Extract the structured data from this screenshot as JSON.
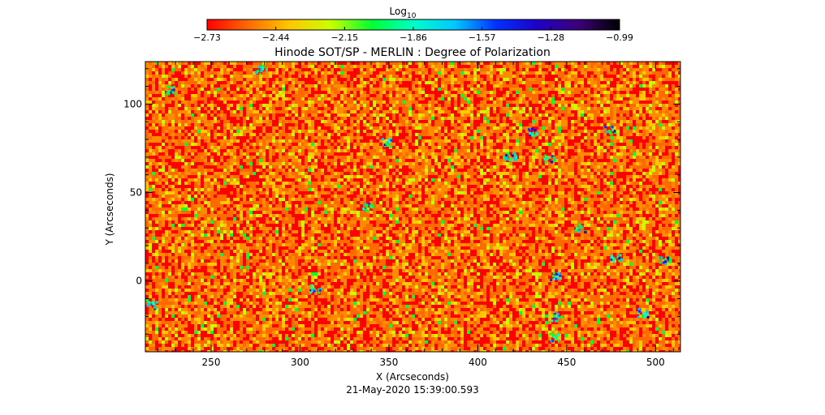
{
  "chart_data": {
    "type": "heatmap",
    "title": "Hinode SOT/SP - MERLIN : Degree of Polarization",
    "xlabel": "X (Arcseconds)",
    "ylabel": "Y (Arcseconds)",
    "timestamp": "21-May-2020 15:39:00.593",
    "colorbar": {
      "label": "Log",
      "label_subscript": "10",
      "range": [
        -2.73,
        -0.99
      ],
      "tick_labels": [
        "-2.73",
        "-2.44",
        "-2.15",
        "-1.86",
        "-1.57",
        "-1.28",
        "-0.99"
      ],
      "colormap": [
        "#ff0000",
        "#ff6a00",
        "#ffc800",
        "#c8ff00",
        "#00ff32",
        "#00ffc8",
        "#00c8ff",
        "#0032ff",
        "#1e00c8",
        "#3c0078",
        "#000000"
      ]
    },
    "xlim": [
      213,
      514
    ],
    "ylim": [
      -40,
      124
    ],
    "x_tick_labels": [
      "250",
      "300",
      "350",
      "400",
      "450",
      "500"
    ],
    "y_tick_labels": [
      "0",
      "50",
      "100"
    ]
  }
}
